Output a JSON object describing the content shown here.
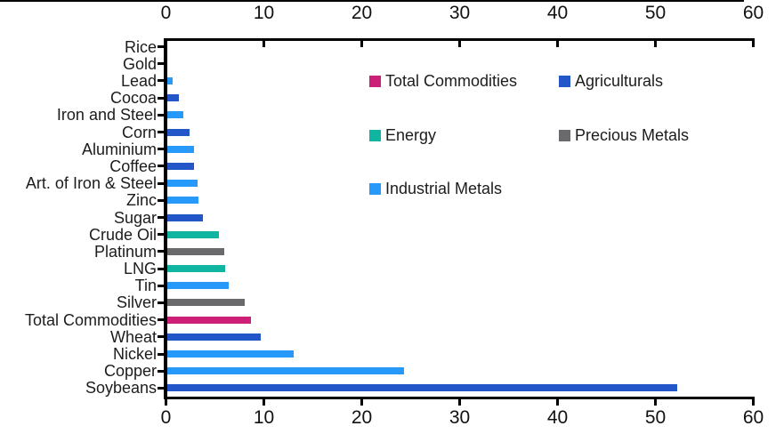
{
  "page": {
    "background_color": "#ffffff",
    "top_border_color": "#000000"
  },
  "chart_data": {
    "type": "bar",
    "orientation": "horizontal",
    "title": "",
    "xlabel": "",
    "ylabel": "",
    "xlim": [
      0,
      60
    ],
    "xticks": [
      0,
      10,
      20,
      30,
      40,
      50,
      60
    ],
    "x_axis_shown": "top and bottom",
    "grid": false,
    "axis_color": "#000000",
    "bars": [
      {
        "label": "Rice",
        "group": "Agriculturals",
        "value": 0
      },
      {
        "label": "Gold",
        "group": "Precious Metals",
        "value": 0
      },
      {
        "label": "Lead",
        "group": "Industrial Metals",
        "value": 0.5
      },
      {
        "label": "Cocoa",
        "group": "Agriculturals",
        "value": 1.2
      },
      {
        "label": "Iron and Steel",
        "group": "Industrial Metals",
        "value": 1.6
      },
      {
        "label": "Corn",
        "group": "Agriculturals",
        "value": 2.3
      },
      {
        "label": "Aluminium",
        "group": "Industrial Metals",
        "value": 2.7
      },
      {
        "label": "Coffee",
        "group": "Agriculturals",
        "value": 2.7
      },
      {
        "label": "Art. of Iron & Steel",
        "group": "Industrial Metals",
        "value": 3.1
      },
      {
        "label": "Zinc",
        "group": "Industrial Metals",
        "value": 3.2
      },
      {
        "label": "Sugar",
        "group": "Agriculturals",
        "value": 3.6
      },
      {
        "label": "Crude Oil",
        "group": "Energy",
        "value": 5.3
      },
      {
        "label": "Platinum",
        "group": "Precious Metals",
        "value": 5.8
      },
      {
        "label": "LNG",
        "group": "Energy",
        "value": 5.9
      },
      {
        "label": "Tin",
        "group": "Industrial Metals",
        "value": 6.3
      },
      {
        "label": "Silver",
        "group": "Precious Metals",
        "value": 7.9
      },
      {
        "label": "Total Commodities",
        "group": "Total Commodities",
        "value": 8.5
      },
      {
        "label": "Wheat",
        "group": "Agriculturals",
        "value": 9.5
      },
      {
        "label": "Nickel",
        "group": "Industrial Metals",
        "value": 12.9
      },
      {
        "label": "Copper",
        "group": "Industrial Metals",
        "value": 24.2
      },
      {
        "label": "Soybeans",
        "group": "Agriculturals",
        "value": 52.1
      }
    ],
    "legend": [
      {
        "label": "Total Commodities",
        "color": "#CC2077"
      },
      {
        "label": "Agriculturals",
        "color": "#2356C8"
      },
      {
        "label": "Energy",
        "color": "#0FB5A1"
      },
      {
        "label": "Precious Metals",
        "color": "#6A6A6C"
      },
      {
        "label": "Industrial Metals",
        "color": "#2699FA"
      }
    ],
    "legend_position": "inside upper right, two columns"
  }
}
